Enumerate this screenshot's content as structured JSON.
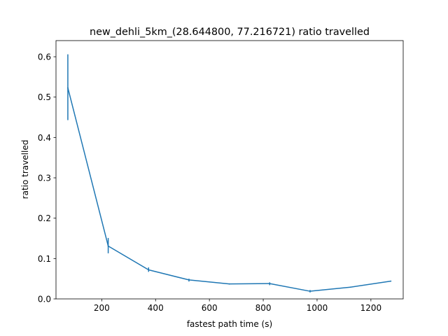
{
  "chart_data": {
    "type": "line",
    "title": "new_dehli_5km_(28.644800, 77.216721) ratio travelled",
    "xlabel": "fastest path time (s)",
    "ylabel": "ratio travelled",
    "xlim": [
      30,
      1320
    ],
    "ylim": [
      0,
      0.64
    ],
    "xticks": [
      200,
      400,
      600,
      800,
      1000,
      1200
    ],
    "yticks": [
      0.0,
      0.1,
      0.2,
      0.3,
      0.4,
      0.5,
      0.6
    ],
    "xtick_labels": [
      "200",
      "400",
      "600",
      "800",
      "1000",
      "1200"
    ],
    "ytick_labels": [
      "0.0",
      "0.1",
      "0.2",
      "0.3",
      "0.4",
      "0.5",
      "0.6"
    ],
    "grid": false,
    "series": [
      {
        "color": "#1f77b4",
        "x": [
          74,
          224,
          374,
          524,
          674,
          824,
          974,
          1124,
          1274
        ],
        "y": [
          0.523,
          0.131,
          0.072,
          0.047,
          0.037,
          0.038,
          0.019,
          0.029,
          0.044
        ],
        "yerr_low": [
          0.443,
          0.113,
          0.067,
          0.043,
          0.036,
          0.034,
          0.016,
          0.029,
          0.044
        ],
        "yerr_high": [
          0.606,
          0.151,
          0.078,
          0.05,
          0.038,
          0.041,
          0.022,
          0.029,
          0.044
        ]
      }
    ]
  }
}
